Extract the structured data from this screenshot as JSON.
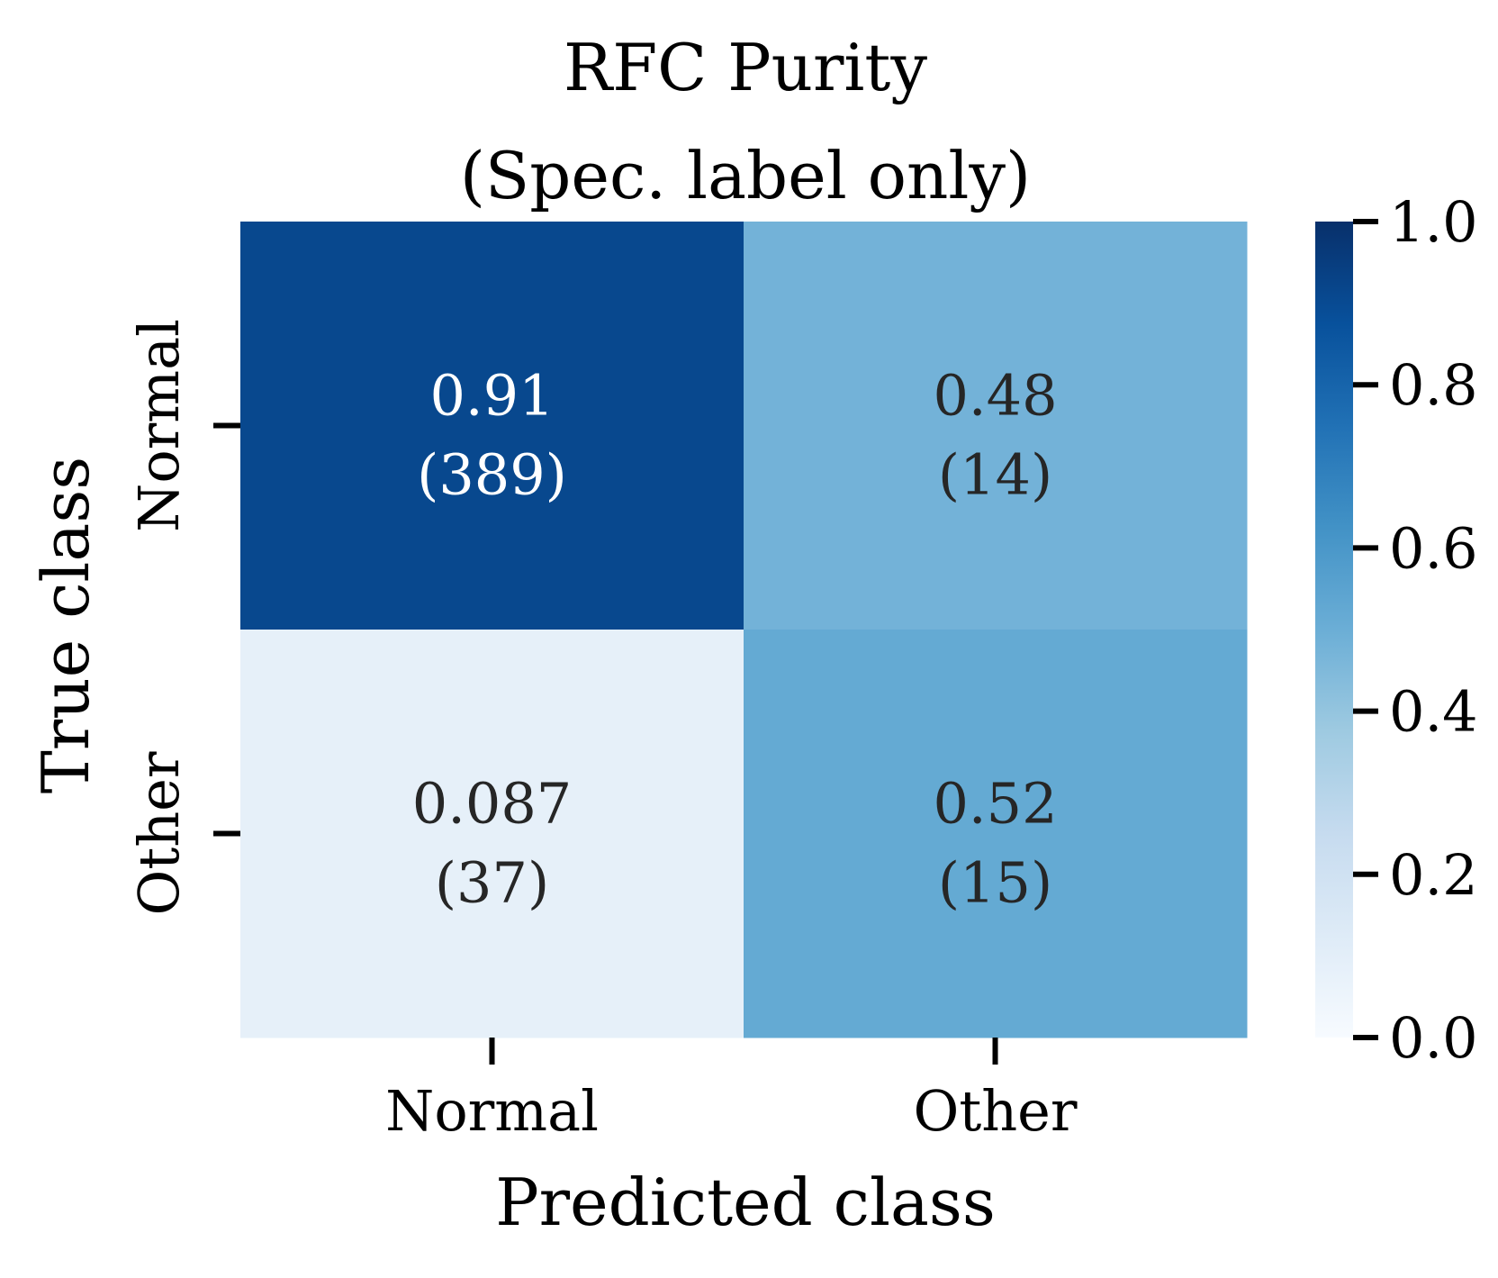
{
  "chart_data": {
    "type": "heatmap",
    "title_lines": [
      "RFC Purity",
      "(Spec. label only)"
    ],
    "xlabel": "Predicted class",
    "ylabel": "True class",
    "x_categories": [
      "Normal",
      "Other"
    ],
    "y_categories": [
      "Normal",
      "Other"
    ],
    "cells": [
      {
        "row": 0,
        "col": 0,
        "value": 0.91,
        "value_label": "0.91",
        "count_label": "(389)"
      },
      {
        "row": 0,
        "col": 1,
        "value": 0.48,
        "value_label": "0.48",
        "count_label": "(14)"
      },
      {
        "row": 1,
        "col": 0,
        "value": 0.087,
        "value_label": "0.087",
        "count_label": "(37)"
      },
      {
        "row": 1,
        "col": 1,
        "value": 0.52,
        "value_label": "0.52",
        "count_label": "(15)"
      }
    ],
    "colorbar": {
      "colormap": "Blues",
      "vmin": 0.0,
      "vmax": 1.0,
      "ticks": [
        0.0,
        0.2,
        0.4,
        0.6,
        0.8,
        1.0
      ],
      "tick_labels": [
        "0.0",
        "0.2",
        "0.4",
        "0.6",
        "0.8",
        "1.0"
      ]
    },
    "colors": {
      "cmap_stops": [
        "#f7fbff",
        "#deebf7",
        "#c6dbef",
        "#9ecae1",
        "#6baed6",
        "#4292c6",
        "#2171b5",
        "#08519c",
        "#08306b"
      ],
      "text_dark": "#262626",
      "text_light": "#ffffff"
    }
  }
}
